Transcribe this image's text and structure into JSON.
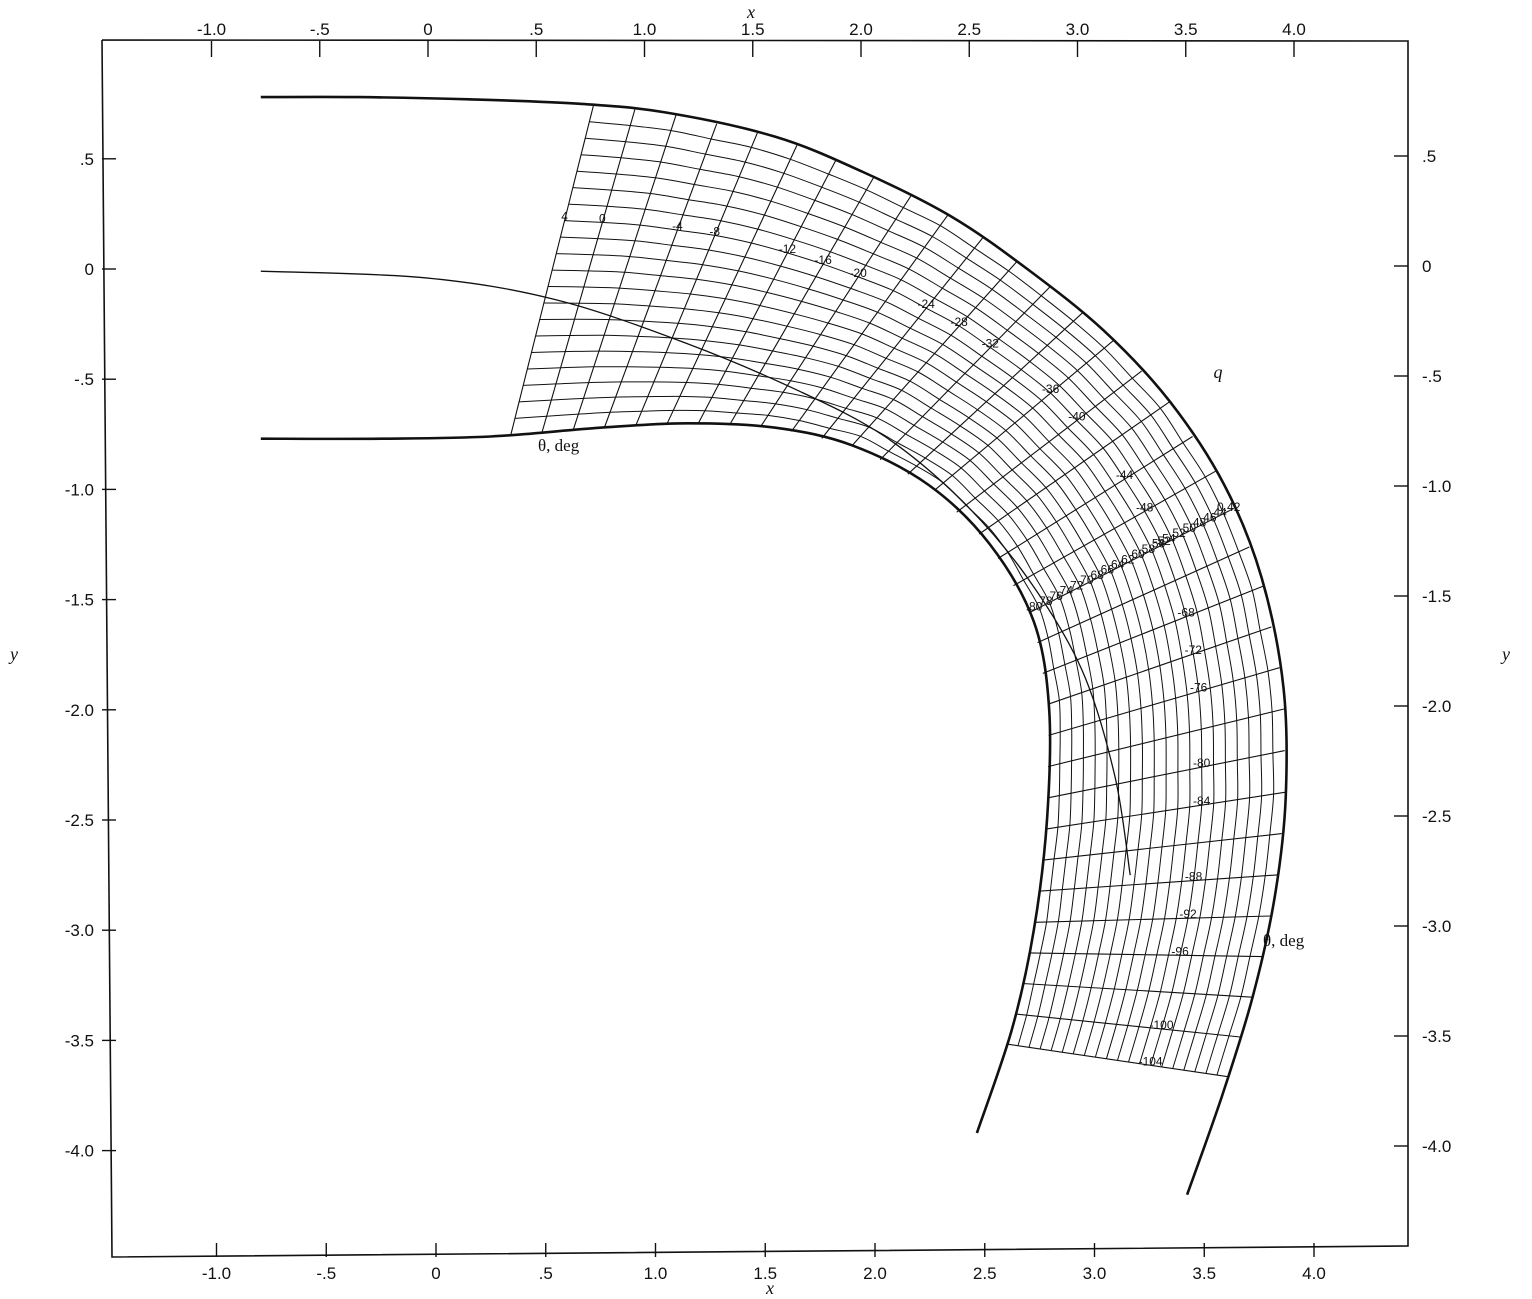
{
  "chart_data": {
    "type": "line",
    "title": "",
    "xlabel": "x",
    "ylabel": "y",
    "axes": {
      "top_x_ticks": [
        "-1.0",
        "-.5",
        "0",
        ".5",
        "1.0",
        "1.5",
        "2.0",
        "2.5",
        "3.0",
        "3.5",
        "4.0"
      ],
      "bottom_x_ticks": [
        "-1.0",
        "-.5",
        "0",
        ".5",
        "1.0",
        "1.5",
        "2.0",
        "2.5",
        "3.0",
        "3.5",
        "4.0"
      ],
      "left_y_ticks": [
        ".5",
        "0",
        "-.5",
        "-1.0",
        "-1.5",
        "-2.0",
        "-2.5",
        "-3.0",
        "-3.5",
        "-4.0"
      ],
      "right_y_ticks": [
        ".5",
        "0",
        "-.5",
        "-1.0",
        "-1.5",
        "-2.0",
        "-2.5",
        "-3.0",
        "-3.5",
        "-4.0"
      ]
    },
    "grid": false,
    "annotations": {
      "q_label": "q",
      "theta_label_upper": "θ, deg",
      "theta_label_lower": "θ, deg"
    },
    "theta_labels": [
      "4",
      "0",
      "-4",
      "-8",
      "-12",
      "-16",
      "-20",
      "-24",
      "-28",
      "-32",
      "-36",
      "-40",
      "-44",
      "-48",
      "-52",
      "-68",
      "-72",
      "-76",
      "-80",
      "-84",
      "-88",
      "-92",
      "-96",
      "-100",
      "-104"
    ],
    "q_labels": [
      "0.42",
      ".44",
      ".46",
      ".48",
      ".50",
      ".52",
      ".54",
      ".56",
      ".58",
      ".60",
      ".62",
      ".64",
      ".66",
      ".68",
      ".70",
      ".72",
      ".74",
      ".76",
      ".78",
      ".80"
    ],
    "series": [
      {
        "name": "",
        "x": [
          -0.75,
          -0.3,
          0.2,
          0.7,
          1.1,
          1.6,
          2.0,
          2.4,
          2.75,
          3.1,
          3.4,
          3.65,
          3.82,
          3.92,
          3.93,
          3.88,
          3.78,
          3.64,
          3.48
        ],
        "y": [
          0.78,
          0.78,
          0.77,
          0.75,
          0.71,
          0.6,
          0.44,
          0.24,
          0.0,
          -0.28,
          -0.6,
          -0.98,
          -1.4,
          -1.9,
          -2.4,
          -2.85,
          -3.3,
          -3.75,
          -4.2
        ]
      },
      {
        "name": "",
        "x": [
          -0.75,
          -0.2,
          0.3,
          0.8,
          1.2,
          1.6,
          1.95,
          2.3,
          2.58,
          2.78,
          2.85,
          2.84,
          2.78,
          2.68,
          2.52
        ],
        "y": [
          -0.77,
          -0.77,
          -0.76,
          -0.72,
          -0.7,
          -0.72,
          -0.8,
          -0.98,
          -1.25,
          -1.6,
          -2.0,
          -2.5,
          -3.0,
          -3.45,
          -3.92
        ]
      },
      {
        "name": "",
        "x": [
          -0.75,
          0.0,
          0.6,
          1.2,
          1.7,
          2.1,
          2.45,
          2.75,
          3.0,
          3.15,
          3.22
        ],
        "y": [
          -0.01,
          -0.04,
          -0.14,
          -0.34,
          -0.55,
          -0.76,
          -1.05,
          -1.4,
          -1.82,
          -2.3,
          -2.75
        ]
      }
    ]
  }
}
